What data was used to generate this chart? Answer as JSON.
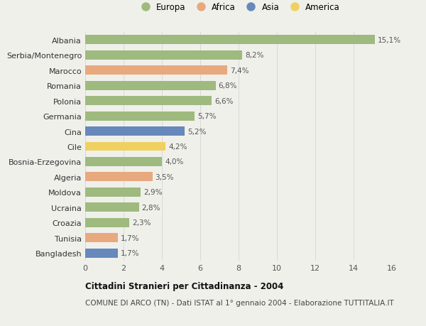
{
  "categories": [
    "Albania",
    "Serbia/Montenegro",
    "Marocco",
    "Romania",
    "Polonia",
    "Germania",
    "Cina",
    "Cile",
    "Bosnia-Erzegovina",
    "Algeria",
    "Moldova",
    "Ucraina",
    "Croazia",
    "Tunisia",
    "Bangladesh"
  ],
  "values": [
    15.1,
    8.2,
    7.4,
    6.8,
    6.6,
    5.7,
    5.2,
    4.2,
    4.0,
    3.5,
    2.9,
    2.8,
    2.3,
    1.7,
    1.7
  ],
  "labels": [
    "15,1%",
    "8,2%",
    "7,4%",
    "6,8%",
    "6,6%",
    "5,7%",
    "5,2%",
    "4,2%",
    "4,0%",
    "3,5%",
    "2,9%",
    "2,8%",
    "2,3%",
    "1,7%",
    "1,7%"
  ],
  "continents": [
    "Europa",
    "Europa",
    "Africa",
    "Europa",
    "Europa",
    "Europa",
    "Asia",
    "America",
    "Europa",
    "Africa",
    "Europa",
    "Europa",
    "Europa",
    "Africa",
    "Asia"
  ],
  "colors": {
    "Europa": "#9eba7e",
    "Africa": "#e8a97e",
    "Asia": "#6688bb",
    "America": "#f0d060"
  },
  "xlim": [
    0,
    16
  ],
  "xticks": [
    0,
    2,
    4,
    6,
    8,
    10,
    12,
    14,
    16
  ],
  "title": "Cittadini Stranieri per Cittadinanza - 2004",
  "subtitle": "COMUNE DI ARCO (TN) - Dati ISTAT al 1° gennaio 2004 - Elaborazione TUTTITALIA.IT",
  "background_color": "#f0f0eb",
  "grid_color": "#d8d8d8"
}
